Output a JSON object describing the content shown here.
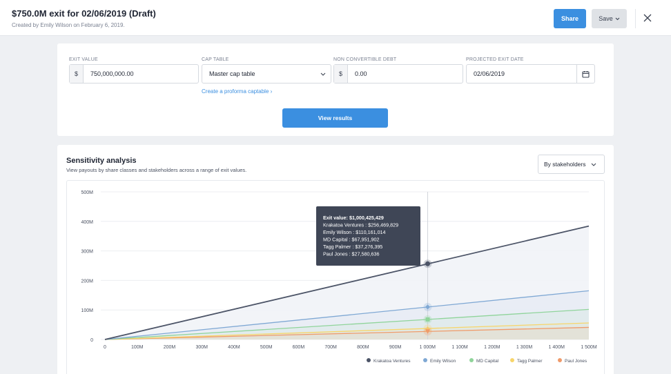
{
  "header": {
    "title": "$750.0M exit for 02/06/2019 (Draft)",
    "subtitle": "Created by Emily Wilson on February 6, 2019.",
    "share_label": "Share",
    "save_label": "Save"
  },
  "form": {
    "exit_value": {
      "label": "EXIT VALUE",
      "prefix": "$",
      "value": "750,000,000.00"
    },
    "cap_table": {
      "label": "CAP TABLE",
      "value": "Master cap table"
    },
    "non_convertible_debt": {
      "label": "NON CONVERTIBLE DEBT",
      "prefix": "$",
      "value": "0.00"
    },
    "exit_date": {
      "label": "PROJECTED EXIT DATE",
      "value": "02/06/2019"
    },
    "proforma_link": "Create a proforma captable",
    "view_results_label": "View results"
  },
  "sensitivity": {
    "title": "Sensitivity analysis",
    "subtitle": "View payouts by share classes and stakeholders across a range of exit values.",
    "dropdown_value": "By stakeholders"
  },
  "tooltip": {
    "lines": [
      "Exit value: $1,000,425,429",
      "Krakatoa Ventures : $256,469,829",
      "Emily Wilson : $110,161,014",
      "MD Capital : $67,951,902",
      "Tagg Palmer : $37,276,395",
      "Paul Jones : $27,580,636"
    ]
  },
  "colors": {
    "accent": "#3b8fe0",
    "krakatoa": "#4c5467",
    "emily": "#7fa8d4",
    "md": "#8fd49a",
    "tagg": "#f7d56a",
    "paul": "#ef9a6a"
  },
  "chart_data": {
    "type": "line",
    "x": [
      0,
      1500
    ],
    "x_unit": "M",
    "xlim": [
      0,
      1500
    ],
    "ylim": [
      0,
      500
    ],
    "x_ticks": [
      "0",
      "100M",
      "200M",
      "300M",
      "400M",
      "500M",
      "600M",
      "700M",
      "800M",
      "900M",
      "1 000M",
      "1 100M",
      "1 200M",
      "1 300M",
      "1 400M",
      "1 500M"
    ],
    "y_ticks": [
      "0",
      "100M",
      "200M",
      "300M",
      "400M",
      "500M"
    ],
    "grid": true,
    "legend_position": "bottom-right",
    "hover_x": 1000.43,
    "series": [
      {
        "name": "Krakatoa Ventures",
        "color": "#4c5467",
        "values": [
          0,
          384
        ],
        "hover_value": 256.47,
        "marker": "circle"
      },
      {
        "name": "Emily Wilson",
        "color": "#7fa8d4",
        "values": [
          0,
          165
        ],
        "hover_value": 110.16,
        "marker": "diamond"
      },
      {
        "name": "MD Capital",
        "color": "#8fd49a",
        "values": [
          0,
          102
        ],
        "hover_value": 67.95,
        "marker": "square"
      },
      {
        "name": "Tagg Palmer",
        "color": "#f7d56a",
        "values": [
          0,
          56
        ],
        "hover_value": 37.28,
        "marker": "triangle"
      },
      {
        "name": "Paul Jones",
        "color": "#ef9a6a",
        "values": [
          0,
          41
        ],
        "hover_value": 27.58,
        "marker": "triangle-down"
      }
    ]
  }
}
